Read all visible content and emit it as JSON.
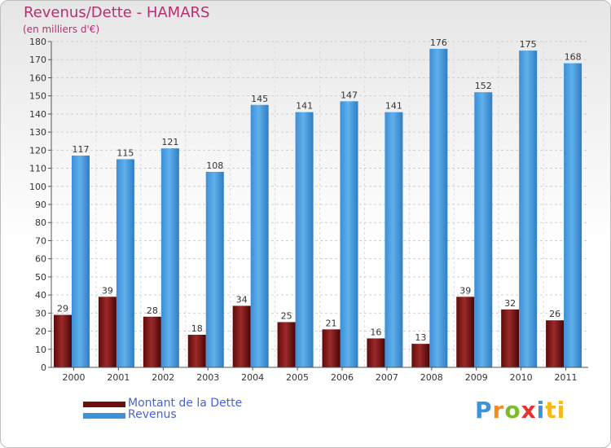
{
  "chart_data": {
    "type": "bar",
    "title": "Revenus/Dette - HAMARS",
    "subtitle": "(en milliers d'€)",
    "categories": [
      "2000",
      "2001",
      "2002",
      "2003",
      "2004",
      "2005",
      "2006",
      "2007",
      "2008",
      "2009",
      "2010",
      "2011"
    ],
    "series": [
      {
        "name": "Montant de la Dette",
        "color": "#7a1515",
        "values": [
          29,
          39,
          28,
          18,
          34,
          25,
          21,
          16,
          13,
          39,
          32,
          26
        ]
      },
      {
        "name": "Revenus",
        "color": "#4fa3e3",
        "values": [
          117,
          115,
          121,
          108,
          145,
          141,
          147,
          141,
          176,
          152,
          175,
          168
        ]
      }
    ],
    "ylim": [
      0,
      180
    ],
    "ytick_step": 10,
    "yticks": [
      "0",
      "10",
      "20",
      "30",
      "40",
      "50",
      "60",
      "70",
      "80",
      "90",
      "100",
      "110",
      "120",
      "130",
      "140",
      "150",
      "160",
      "170",
      "180"
    ],
    "grid": true,
    "xlabel": "",
    "ylabel": ""
  },
  "legend": {
    "items": [
      {
        "label": "Montant de la Dette",
        "color": "#6b0f0f"
      },
      {
        "label": "Revenus",
        "color": "#3e92d8"
      }
    ]
  },
  "logo": {
    "text": "Proxiti",
    "letters": [
      "P",
      "r",
      "o",
      "x",
      "i",
      "ti"
    ]
  }
}
